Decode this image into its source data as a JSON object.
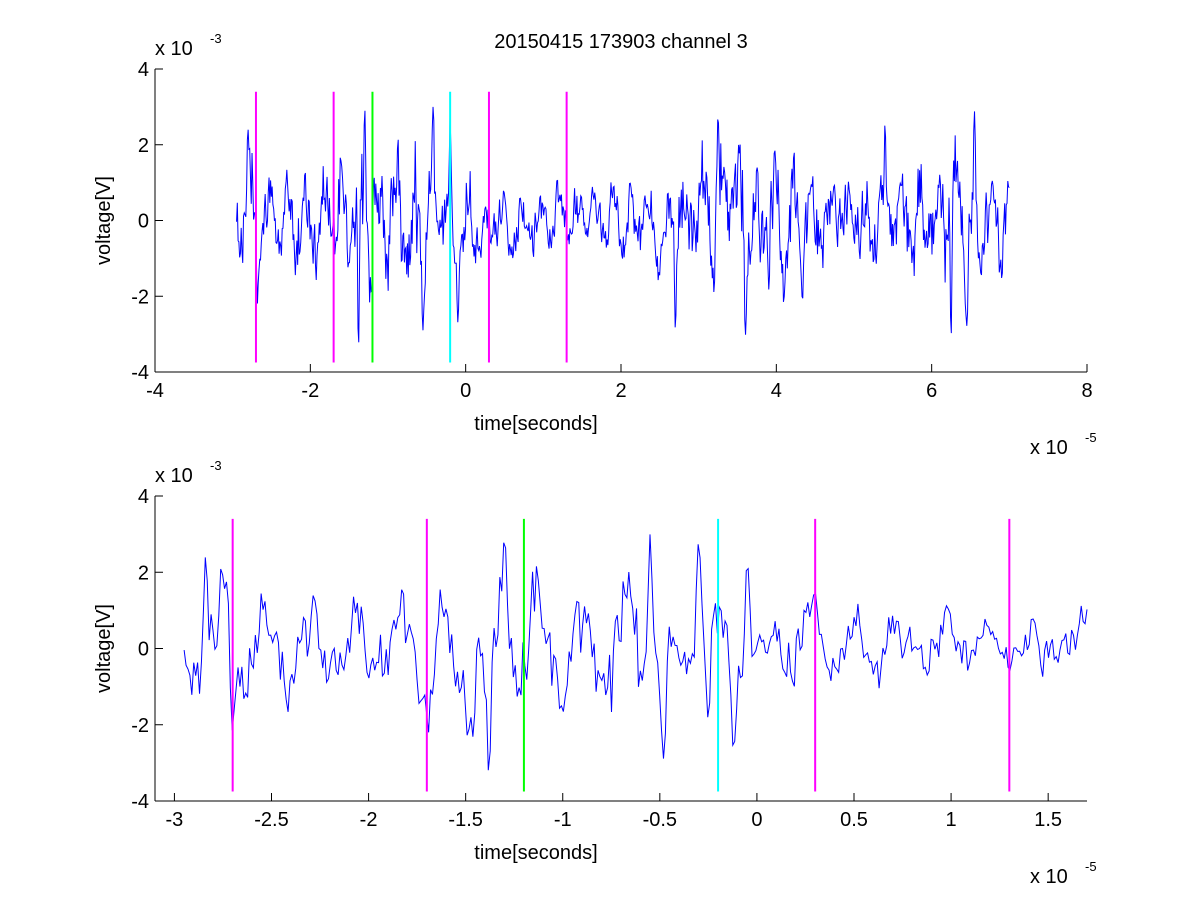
{
  "title": "20150415 173903 channel 3",
  "colors": {
    "signal": "#0000ff",
    "magenta": "#ff00ff",
    "green": "#00ff00",
    "cyan": "#00ffff",
    "axis": "#000000"
  },
  "chart_data": [
    {
      "type": "line",
      "xlabel": "time[seconds]",
      "ylabel": "voltage[V]",
      "x_scale_label": {
        "base": "x 10",
        "exp": "-5"
      },
      "y_scale_label": {
        "base": "x 10",
        "exp": "-3"
      },
      "xlim": [
        -4,
        8
      ],
      "ylim": [
        -4,
        4
      ],
      "xticks": [
        -4,
        -2,
        0,
        2,
        4,
        6,
        8
      ],
      "xtick_labels": [
        "-4",
        "-2",
        "0",
        "2",
        "4",
        "6",
        "8"
      ],
      "yticks": [
        -4,
        -2,
        0,
        2,
        4
      ],
      "ytick_labels": [
        "-4",
        "-2",
        "0",
        "2",
        "4"
      ],
      "series": [
        {
          "color": "#0000ff",
          "x_range": [
            -2.95,
            7.0
          ],
          "n_points": 1000,
          "envelope": [
            [
              -2.95,
              0.8
            ],
            [
              -2.8,
              1.9
            ],
            [
              -2.5,
              1.2
            ],
            [
              -2.0,
              1.4
            ],
            [
              -1.7,
              1.5
            ],
            [
              -1.45,
              2.3
            ],
            [
              -1.0,
              1.6
            ],
            [
              -0.65,
              2.2
            ],
            [
              -0.4,
              1.6
            ],
            [
              0.0,
              1.2
            ],
            [
              0.5,
              0.9
            ],
            [
              1.2,
              0.8
            ],
            [
              2.0,
              0.9
            ],
            [
              2.6,
              1.3
            ],
            [
              3.2,
              1.8
            ],
            [
              3.6,
              2.1
            ],
            [
              4.2,
              1.4
            ],
            [
              5.0,
              1.4
            ],
            [
              5.5,
              1.1
            ],
            [
              6.0,
              1.9
            ],
            [
              6.4,
              2.1
            ],
            [
              6.8,
              1.5
            ],
            [
              7.0,
              1.0
            ]
          ],
          "features": [
            [
              -2.8,
              2.4
            ],
            [
              -2.68,
              -2.2
            ],
            [
              -1.38,
              -3.4
            ],
            [
              -1.3,
              3.0
            ],
            [
              -0.42,
              3.0
            ],
            [
              -0.55,
              -2.9
            ],
            [
              -0.2,
              2.8
            ],
            [
              -0.1,
              -2.7
            ],
            [
              2.7,
              -2.9
            ],
            [
              3.25,
              2.8
            ],
            [
              3.6,
              -3.1
            ],
            [
              5.4,
              2.6
            ],
            [
              6.25,
              -3.1
            ],
            [
              6.55,
              2.9
            ],
            [
              6.45,
              -2.8
            ]
          ]
        }
      ],
      "vlines": [
        {
          "x": -2.7,
          "color": "#ff00ff"
        },
        {
          "x": -1.7,
          "color": "#ff00ff"
        },
        {
          "x": -1.2,
          "color": "#00ff00"
        },
        {
          "x": -0.2,
          "color": "#00ffff"
        },
        {
          "x": 0.3,
          "color": "#ff00ff"
        },
        {
          "x": 1.3,
          "color": "#ff00ff"
        }
      ],
      "vline_range": [
        -3.75,
        3.4
      ],
      "grid": false,
      "legend": "none"
    },
    {
      "type": "line",
      "xlabel": "time[seconds]",
      "ylabel": "voltage[V]",
      "x_scale_label": {
        "base": "x 10",
        "exp": "-5"
      },
      "y_scale_label": {
        "base": "x 10",
        "exp": "-3"
      },
      "xlim": [
        -3.1,
        1.7
      ],
      "ylim": [
        -4,
        4
      ],
      "xticks": [
        -3,
        -2.5,
        -2,
        -1.5,
        -1,
        -0.5,
        0,
        0.5,
        1,
        1.5
      ],
      "xtick_labels": [
        "-3",
        "-2.5",
        "-2",
        "-1.5",
        "-1",
        "-0.5",
        "0",
        "0.5",
        "1",
        "1.5"
      ],
      "yticks": [
        -4,
        -2,
        0,
        2,
        4
      ],
      "ytick_labels": [
        "-4",
        "-2",
        "0",
        "2",
        "4"
      ],
      "series": [
        {
          "color": "#0000ff",
          "x_range": [
            -2.95,
            1.7
          ],
          "n_points": 470,
          "envelope": [
            [
              -2.95,
              0.8
            ],
            [
              -2.8,
              1.9
            ],
            [
              -2.5,
              1.2
            ],
            [
              -2.0,
              1.4
            ],
            [
              -1.7,
              1.5
            ],
            [
              -1.45,
              2.3
            ],
            [
              -1.0,
              1.6
            ],
            [
              -0.65,
              2.2
            ],
            [
              -0.4,
              1.6
            ],
            [
              0.0,
              1.2
            ],
            [
              0.5,
              0.9
            ],
            [
              1.2,
              0.8
            ],
            [
              1.7,
              0.9
            ]
          ],
          "features": [
            [
              -2.84,
              2.4
            ],
            [
              -2.7,
              -2.2
            ],
            [
              -1.38,
              -3.4
            ],
            [
              -1.3,
              3.0
            ],
            [
              -0.55,
              3.0
            ],
            [
              -0.48,
              -2.9
            ],
            [
              -0.3,
              2.8
            ],
            [
              -0.12,
              -2.7
            ],
            [
              -0.05,
              2.3
            ],
            [
              -0.25,
              -1.9
            ]
          ]
        }
      ],
      "vlines": [
        {
          "x": -2.7,
          "color": "#ff00ff"
        },
        {
          "x": -1.7,
          "color": "#ff00ff"
        },
        {
          "x": -1.2,
          "color": "#00ff00"
        },
        {
          "x": -0.2,
          "color": "#00ffff"
        },
        {
          "x": 0.3,
          "color": "#ff00ff"
        },
        {
          "x": 1.3,
          "color": "#ff00ff"
        }
      ],
      "vline_range": [
        -3.75,
        3.4
      ],
      "grid": false,
      "legend": "none"
    }
  ]
}
